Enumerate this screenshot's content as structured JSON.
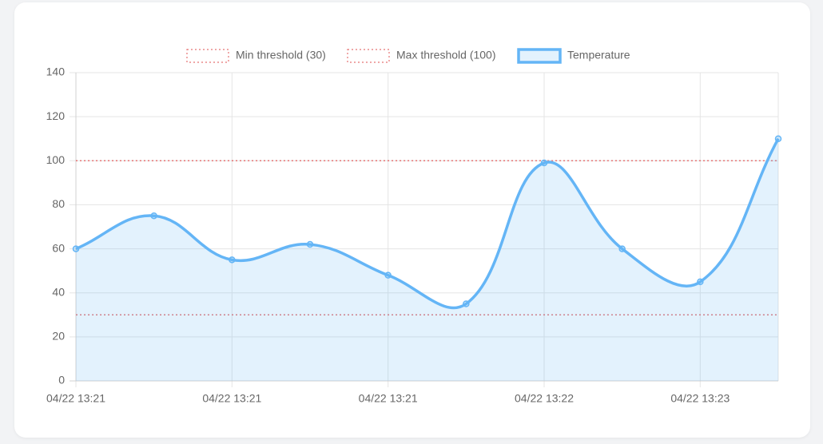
{
  "chart_data": {
    "type": "line",
    "categories": [
      "04/22 13:21",
      null,
      "04/22 13:21",
      null,
      "04/22 13:21",
      null,
      "04/22 13:22",
      null,
      "04/22 13:23",
      null
    ],
    "series": [
      {
        "name": "Min threshold (30)",
        "color": "#e57373",
        "dashed": true,
        "values": [
          30,
          30,
          30,
          30,
          30,
          30,
          30,
          30,
          30,
          30
        ]
      },
      {
        "name": "Max threshold (100)",
        "color": "#e57373",
        "dashed": true,
        "values": [
          100,
          100,
          100,
          100,
          100,
          100,
          100,
          100,
          100,
          100
        ]
      },
      {
        "name": "Temperature",
        "color": "#64b5f6",
        "fill": true,
        "values": [
          60,
          75,
          55,
          62,
          48,
          35,
          99,
          60,
          45,
          110
        ]
      }
    ],
    "ylim": [
      0,
      140
    ],
    "yticks": [
      0,
      20,
      40,
      60,
      80,
      100,
      120,
      140
    ],
    "grid": true,
    "legend": "top"
  }
}
